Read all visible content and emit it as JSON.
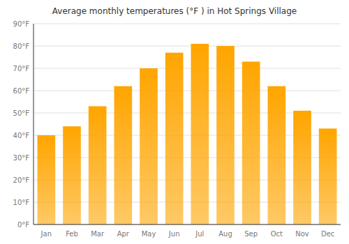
{
  "chart_data": {
    "type": "bar",
    "title": "Average monthly temperatures (°F ) in Hot Springs Village",
    "categories": [
      "Jan",
      "Feb",
      "Mar",
      "Apr",
      "May",
      "Jun",
      "Jul",
      "Aug",
      "Sep",
      "Oct",
      "Nov",
      "Dec"
    ],
    "values": [
      40,
      44,
      53,
      62,
      70,
      77,
      81,
      80,
      73,
      62,
      51,
      43
    ],
    "color": "#FFA500",
    "ylim": [
      0,
      90
    ],
    "yticks": [
      {
        "value": 0,
        "label": "0°F"
      },
      {
        "value": 10,
        "label": "10°F"
      },
      {
        "value": 20,
        "label": "20°F"
      },
      {
        "value": 30,
        "label": "30°F"
      },
      {
        "value": 40,
        "label": "40°F"
      },
      {
        "value": 50,
        "label": "50°F"
      },
      {
        "value": 60,
        "label": "60°F"
      },
      {
        "value": 70,
        "label": "70°F"
      },
      {
        "value": 80,
        "label": "80°F"
      },
      {
        "value": 90,
        "label": "90°F"
      }
    ],
    "grid": true
  }
}
